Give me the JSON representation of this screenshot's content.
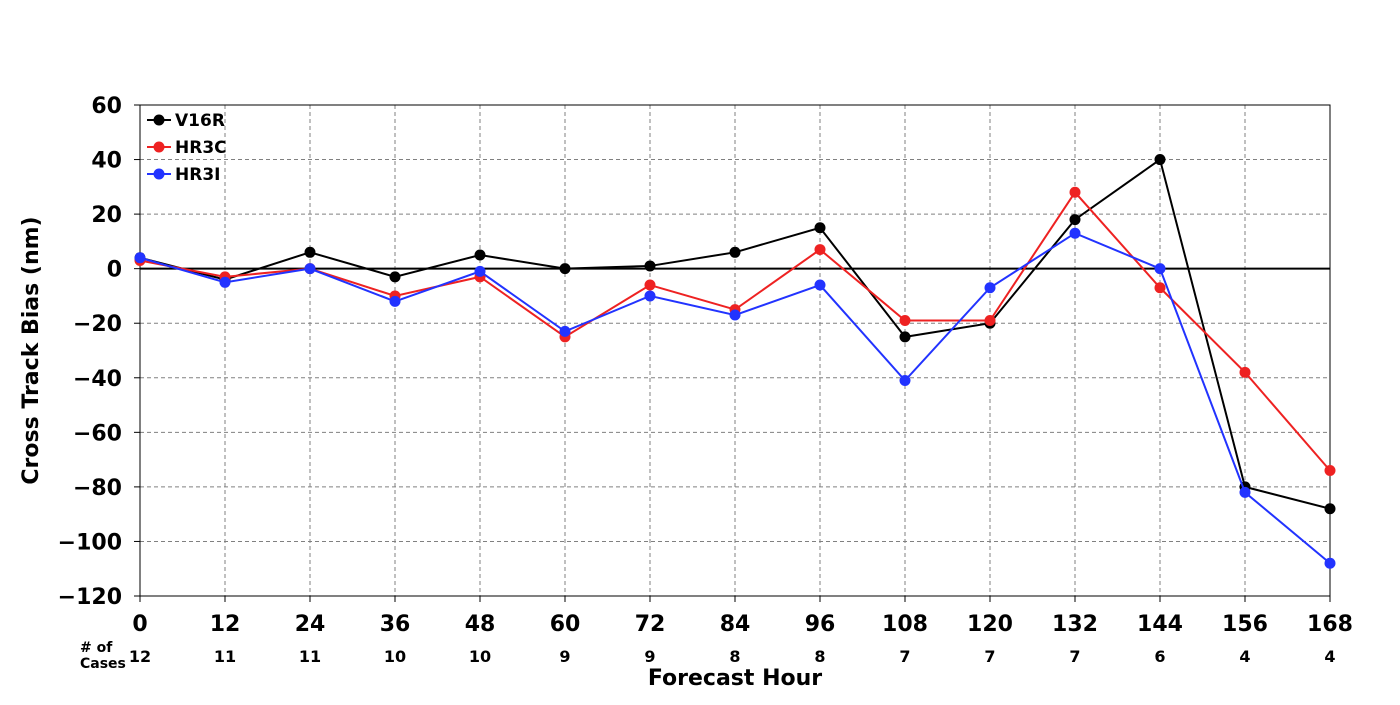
{
  "chart_data": {
    "type": "line",
    "title": "",
    "xlabel": "Forecast Hour",
    "ylabel": "Cross Track Bias (nm)",
    "x": [
      0,
      12,
      24,
      36,
      48,
      60,
      72,
      84,
      96,
      108,
      120,
      132,
      144,
      156,
      168
    ],
    "xlim": [
      0,
      168
    ],
    "ylim": [
      -120,
      60
    ],
    "yticks": [
      60,
      40,
      20,
      0,
      -20,
      -40,
      -60,
      -80,
      -100,
      -120
    ],
    "ytick_labels": [
      "60",
      "40",
      "20",
      "0",
      "−20",
      "−40",
      "−60",
      "−80",
      "−100",
      "−120"
    ],
    "xtick_labels": [
      "0",
      "12",
      "24",
      "36",
      "48",
      "60",
      "72",
      "84",
      "96",
      "108",
      "120",
      "132",
      "144",
      "156",
      "168"
    ],
    "grid": true,
    "grid_style": "dashed",
    "zero_line": true,
    "legend_position": "top-left",
    "cases_label_line1": "# of",
    "cases_label_line2": "Cases",
    "cases": [
      "12",
      "11",
      "11",
      "10",
      "10",
      "9",
      "9",
      "8",
      "8",
      "7",
      "7",
      "7",
      "6",
      "4",
      "4"
    ],
    "series": [
      {
        "name": "V16R",
        "color": "#000000",
        "values": [
          4,
          -4,
          6,
          -3,
          5,
          0,
          1,
          6,
          15,
          -25,
          -20,
          18,
          40,
          -80,
          -88
        ]
      },
      {
        "name": "HR3C",
        "color": "#ee2222",
        "values": [
          3,
          -3,
          0,
          -10,
          -3,
          -25,
          -6,
          -15,
          7,
          -19,
          -19,
          28,
          -7,
          -38,
          -74
        ]
      },
      {
        "name": "HR3I",
        "color": "#2233ff",
        "values": [
          4,
          -5,
          0,
          -12,
          -1,
          -23,
          -10,
          -17,
          -6,
          -41,
          -7,
          13,
          0,
          -82,
          -108
        ]
      }
    ]
  }
}
